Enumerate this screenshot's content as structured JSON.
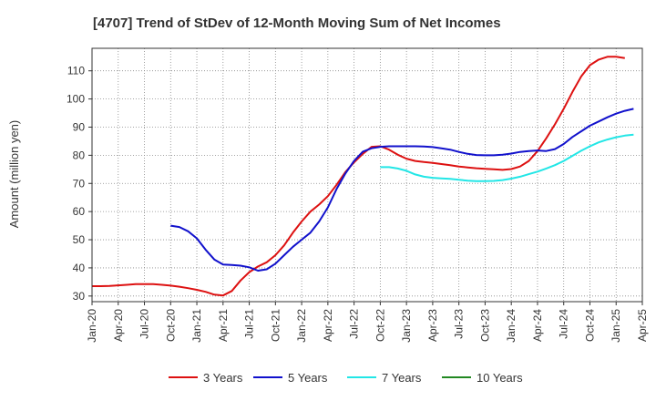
{
  "chart_data": {
    "type": "line",
    "title": "[4707]  Trend of StDev of 12-Month Moving Sum of Net Incomes",
    "xlabel": "",
    "ylabel": "Amount (million yen)",
    "ylim": [
      28,
      118
    ],
    "yticks": [
      30,
      40,
      50,
      60,
      70,
      80,
      90,
      100,
      110
    ],
    "xticks": [
      "Jan-20",
      "Apr-20",
      "Jul-20",
      "Oct-20",
      "Jan-21",
      "Apr-21",
      "Jul-21",
      "Oct-21",
      "Jan-22",
      "Apr-22",
      "Jul-22",
      "Oct-22",
      "Jan-23",
      "Apr-23",
      "Jul-23",
      "Oct-23",
      "Jan-24",
      "Apr-24",
      "Jul-24",
      "Oct-24",
      "Jan-25",
      "Apr-25"
    ],
    "x_start": "Jan-20",
    "grid": true,
    "legend_position": "bottom",
    "series": [
      {
        "name": "3 Years",
        "color": "#dd1111",
        "start_month": 0,
        "values": [
          33.5,
          33.5,
          33.6,
          33.8,
          34.0,
          34.2,
          34.2,
          34.2,
          34.0,
          33.7,
          33.3,
          32.8,
          32.2,
          31.5,
          30.5,
          30.2,
          31.8,
          35.5,
          38.5,
          40.5,
          42.0,
          44.5,
          48.0,
          52.5,
          56.5,
          60.0,
          62.5,
          65.5,
          69.5,
          74.0,
          77.5,
          80.5,
          83.0,
          83.2,
          82.0,
          80.2,
          78.8,
          78.0,
          77.6,
          77.3,
          76.9,
          76.5,
          76.0,
          75.7,
          75.4,
          75.2,
          75.0,
          74.8,
          75.1,
          76.0,
          78.0,
          81.5,
          86.0,
          91.0,
          96.5,
          102.5,
          108.0,
          112.0,
          114.0,
          115.0,
          115.0,
          114.5
        ]
      },
      {
        "name": "5 Years",
        "color": "#1111cc",
        "start_month": 9,
        "values": [
          55.0,
          54.5,
          53.0,
          50.5,
          46.5,
          43.0,
          41.2,
          41.0,
          40.8,
          40.2,
          39.0,
          39.5,
          41.5,
          44.5,
          47.5,
          50.0,
          52.5,
          56.5,
          61.5,
          68.0,
          73.5,
          78.0,
          81.3,
          82.5,
          83.0,
          83.2,
          83.2,
          83.2,
          83.2,
          83.1,
          82.9,
          82.5,
          82.0,
          81.2,
          80.5,
          80.1,
          80.0,
          80.0,
          80.2,
          80.6,
          81.2,
          81.5,
          81.7,
          81.5,
          82.2,
          84.0,
          86.5,
          88.5,
          90.5,
          92.0,
          93.5,
          94.8,
          95.8,
          96.5
        ]
      },
      {
        "name": "7 Years",
        "color": "#22e6e6",
        "start_month": 33,
        "values": [
          75.8,
          75.8,
          75.3,
          74.5,
          73.2,
          72.4,
          72.0,
          71.8,
          71.6,
          71.3,
          71.0,
          70.8,
          70.8,
          70.9,
          71.2,
          71.7,
          72.4,
          73.3,
          74.2,
          75.3,
          76.5,
          78.0,
          79.8,
          81.6,
          83.2,
          84.6,
          85.6,
          86.4,
          87.0,
          87.3
        ]
      },
      {
        "name": "10 Years",
        "color": "#228822",
        "start_month": 0,
        "values": []
      }
    ]
  }
}
